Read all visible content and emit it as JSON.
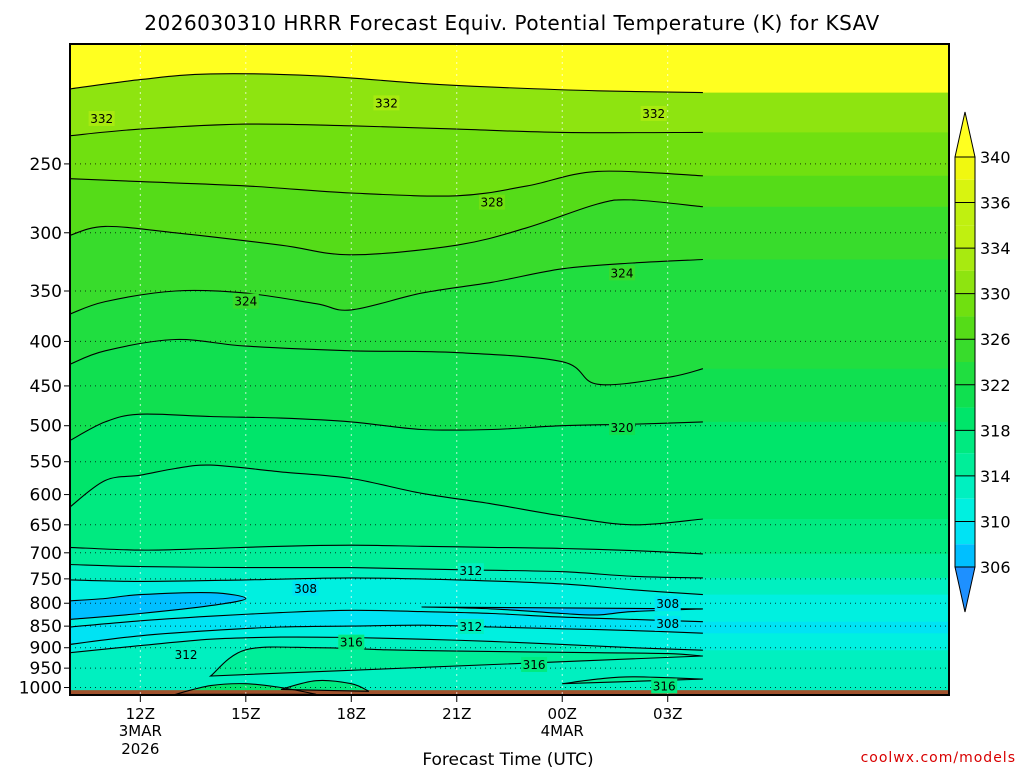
{
  "chart_data": {
    "type": "heatmap",
    "title": "2026030310 HRRR Forecast Equiv. Potential Temperature (K) for KSAV",
    "xlabel": "Forecast Time (UTC)",
    "ylabel": "",
    "y_scale": "log-pressure",
    "ylim": [
      1020,
      182
    ],
    "xlim": [
      10,
      35
    ],
    "grid": true,
    "y_ticks": [
      250,
      300,
      350,
      400,
      450,
      500,
      550,
      600,
      650,
      700,
      750,
      800,
      850,
      900,
      950,
      1000
    ],
    "x_ticks": [
      {
        "x": 12,
        "label": "12Z",
        "sub1": "3MAR",
        "sub2": "2026"
      },
      {
        "x": 15,
        "label": "15Z",
        "sub1": "",
        "sub2": ""
      },
      {
        "x": 18,
        "label": "18Z",
        "sub1": "",
        "sub2": ""
      },
      {
        "x": 21,
        "label": "21Z",
        "sub1": "",
        "sub2": ""
      },
      {
        "x": 24,
        "label": "00Z",
        "sub1": "4MAR",
        "sub2": ""
      },
      {
        "x": 27,
        "label": "03Z",
        "sub1": "",
        "sub2": ""
      }
    ],
    "colorbar": {
      "ticks": [
        306,
        310,
        314,
        318,
        322,
        326,
        330,
        334,
        336,
        340
      ],
      "levels": [
        304,
        306,
        308,
        310,
        312,
        314,
        316,
        318,
        320,
        322,
        324,
        326,
        328,
        330,
        332,
        334,
        336,
        338,
        340,
        342
      ],
      "colors": [
        "#1e90ff",
        "#00bfff",
        "#00e3f4",
        "#00f0e0",
        "#00f0c0",
        "#00ee99",
        "#00ea80",
        "#00e56a",
        "#10e050",
        "#20de40",
        "#38dc2c",
        "#55dc18",
        "#70e010",
        "#8ee410",
        "#a8ea10",
        "#c0f010",
        "#d8f410",
        "#f0f810",
        "#ffff20"
      ]
    },
    "isotherms": [
      {
        "value": 332,
        "label": true,
        "points": [
          [
            10,
            205
          ],
          [
            12,
            200
          ],
          [
            14,
            197
          ],
          [
            17,
            198
          ],
          [
            20,
            202
          ],
          [
            22,
            204
          ],
          [
            25,
            206
          ],
          [
            28,
            207
          ]
        ]
      },
      {
        "value": 330,
        "label": false,
        "points": [
          [
            10,
            232
          ],
          [
            12,
            228
          ],
          [
            15,
            225
          ],
          [
            18,
            226
          ],
          [
            21,
            228
          ],
          [
            24,
            230
          ],
          [
            28,
            230
          ]
        ]
      },
      {
        "value": 328,
        "label": true,
        "points": [
          [
            10,
            260
          ],
          [
            12,
            262
          ],
          [
            15,
            265
          ],
          [
            18,
            270
          ],
          [
            21,
            272
          ],
          [
            23,
            265
          ],
          [
            25,
            255
          ],
          [
            28,
            258
          ]
        ]
      },
      {
        "value": 326,
        "label": false,
        "points": [
          [
            10,
            302
          ],
          [
            11,
            295
          ],
          [
            13,
            300
          ],
          [
            16,
            310
          ],
          [
            18,
            318
          ],
          [
            21,
            310
          ],
          [
            23,
            296
          ],
          [
            25,
            278
          ],
          [
            26,
            275
          ],
          [
            28,
            280
          ]
        ]
      },
      {
        "value": 324,
        "label": true,
        "points": [
          [
            10,
            372
          ],
          [
            11,
            360
          ],
          [
            13,
            350
          ],
          [
            15,
            352
          ],
          [
            17,
            362
          ],
          [
            18,
            368
          ],
          [
            20,
            352
          ],
          [
            22,
            342
          ],
          [
            24,
            330
          ],
          [
            26,
            325
          ],
          [
            28,
            322
          ]
        ]
      },
      {
        "value": 322,
        "label": false,
        "points": [
          [
            10,
            425
          ],
          [
            11,
            410
          ],
          [
            13,
            398
          ],
          [
            15,
            405
          ],
          [
            18,
            410
          ],
          [
            21,
            412
          ],
          [
            24,
            422
          ],
          [
            25,
            448
          ],
          [
            27,
            440
          ],
          [
            28,
            430
          ]
        ]
      },
      {
        "value": 320,
        "label": true,
        "points": [
          [
            10,
            520
          ],
          [
            11,
            495
          ],
          [
            12,
            485
          ],
          [
            14,
            488
          ],
          [
            16,
            490
          ],
          [
            18,
            495
          ],
          [
            20,
            505
          ],
          [
            22,
            505
          ],
          [
            24,
            500
          ],
          [
            26,
            498
          ],
          [
            28,
            495
          ]
        ]
      },
      {
        "value": 318,
        "label": false,
        "points": [
          [
            10,
            620
          ],
          [
            11,
            578
          ],
          [
            12,
            570
          ],
          [
            13,
            560
          ],
          [
            14,
            555
          ],
          [
            16,
            565
          ],
          [
            18,
            575
          ],
          [
            20,
            598
          ],
          [
            22,
            615
          ],
          [
            24,
            635
          ],
          [
            26,
            650
          ],
          [
            28,
            640
          ]
        ]
      },
      {
        "value": 316,
        "label": false,
        "points": [
          [
            10,
            690
          ],
          [
            12,
            695
          ],
          [
            14,
            692
          ],
          [
            16,
            688
          ],
          [
            18,
            686
          ],
          [
            20,
            688
          ],
          [
            22,
            690
          ],
          [
            24,
            692
          ],
          [
            26,
            696
          ],
          [
            28,
            702
          ]
        ]
      },
      {
        "value": 314,
        "label": false,
        "points": [
          [
            10,
            722
          ],
          [
            12,
            726
          ],
          [
            15,
            728
          ],
          [
            18,
            728
          ],
          [
            21,
            732
          ],
          [
            24,
            736
          ],
          [
            26,
            745
          ],
          [
            28,
            748
          ]
        ]
      },
      {
        "value": 312,
        "label": true,
        "points": [
          [
            10,
            752
          ],
          [
            12,
            755
          ],
          [
            15,
            752
          ],
          [
            18,
            748
          ],
          [
            21,
            752
          ],
          [
            24,
            760
          ],
          [
            26,
            772
          ],
          [
            28,
            782
          ]
        ]
      },
      {
        "value": 308,
        "label": true,
        "points": [
          [
            10,
            795
          ],
          [
            11,
            790
          ],
          [
            12,
            782
          ],
          [
            14,
            778
          ],
          [
            15,
            790
          ],
          [
            14,
            805
          ],
          [
            12,
            822
          ],
          [
            10,
            835
          ]
        ]
      },
      {
        "value": 310,
        "label": false,
        "points": [
          [
            10,
            852
          ],
          [
            12,
            838
          ],
          [
            14,
            828
          ],
          [
            16,
            820
          ],
          [
            18,
            815
          ],
          [
            20,
            818
          ],
          [
            22,
            822
          ],
          [
            24,
            830
          ],
          [
            26,
            835
          ],
          [
            28,
            840
          ]
        ]
      },
      {
        "value": 308,
        "label": true,
        "points": [
          [
            20,
            808
          ],
          [
            22,
            812
          ],
          [
            24,
            822
          ],
          [
            25,
            825
          ],
          [
            26,
            818
          ],
          [
            28,
            812
          ]
        ]
      },
      {
        "value": 312,
        "label": true,
        "points": [
          [
            10,
            892
          ],
          [
            12,
            872
          ],
          [
            14,
            860
          ],
          [
            16,
            852
          ],
          [
            18,
            850
          ],
          [
            20,
            848
          ],
          [
            22,
            852
          ],
          [
            24,
            856
          ],
          [
            26,
            860
          ],
          [
            28,
            866
          ]
        ]
      },
      {
        "value": 314,
        "label": false,
        "points": [
          [
            10,
            912
          ],
          [
            12,
            895
          ],
          [
            14,
            880
          ],
          [
            16,
            875
          ],
          [
            18,
            876
          ],
          [
            20,
            880
          ],
          [
            22,
            885
          ],
          [
            24,
            892
          ],
          [
            26,
            900
          ],
          [
            28,
            906
          ]
        ]
      },
      {
        "value": 316,
        "label": true,
        "points": [
          [
            14,
            970
          ],
          [
            15,
            905
          ],
          [
            17,
            900
          ],
          [
            19,
            905
          ],
          [
            21,
            908
          ],
          [
            23,
            910
          ],
          [
            25,
            912
          ],
          [
            27,
            914
          ],
          [
            28,
            920
          ]
        ]
      },
      {
        "value": 316,
        "label": true,
        "points": [
          [
            24,
            990
          ],
          [
            25,
            978
          ],
          [
            26,
            972
          ],
          [
            28,
            978
          ]
        ]
      },
      {
        "value": 318,
        "label": false,
        "points": [
          [
            16,
            1005
          ],
          [
            17,
            982
          ],
          [
            18,
            990
          ],
          [
            18.5,
            1010
          ]
        ]
      },
      {
        "value": 320,
        "label": false,
        "points": [
          [
            13,
            1018
          ],
          [
            14,
            995
          ],
          [
            15,
            990
          ],
          [
            16,
            1000
          ],
          [
            17,
            1018
          ]
        ]
      }
    ],
    "contour_labels": [
      {
        "value": "332",
        "x": 10.9,
        "y": 222
      },
      {
        "value": "332",
        "x": 19.0,
        "y": 213
      },
      {
        "value": "332",
        "x": 26.6,
        "y": 219
      },
      {
        "value": "328",
        "x": 22.0,
        "y": 277
      },
      {
        "value": "324",
        "x": 15.0,
        "y": 360
      },
      {
        "value": "324",
        "x": 25.7,
        "y": 334
      },
      {
        "value": "320",
        "x": 25.7,
        "y": 503
      },
      {
        "value": "312",
        "x": 21.4,
        "y": 735
      },
      {
        "value": "308",
        "x": 16.7,
        "y": 770
      },
      {
        "value": "308",
        "x": 27.0,
        "y": 802
      },
      {
        "value": "308",
        "x": 27.0,
        "y": 845
      },
      {
        "value": "312",
        "x": 21.4,
        "y": 852
      },
      {
        "value": "316",
        "x": 18.0,
        "y": 888
      },
      {
        "value": "312",
        "x": 13.3,
        "y": 918
      },
      {
        "value": "316",
        "x": 23.2,
        "y": 942
      },
      {
        "value": "316",
        "x": 26.9,
        "y": 997
      }
    ]
  },
  "credit": "coolwx.com/models"
}
